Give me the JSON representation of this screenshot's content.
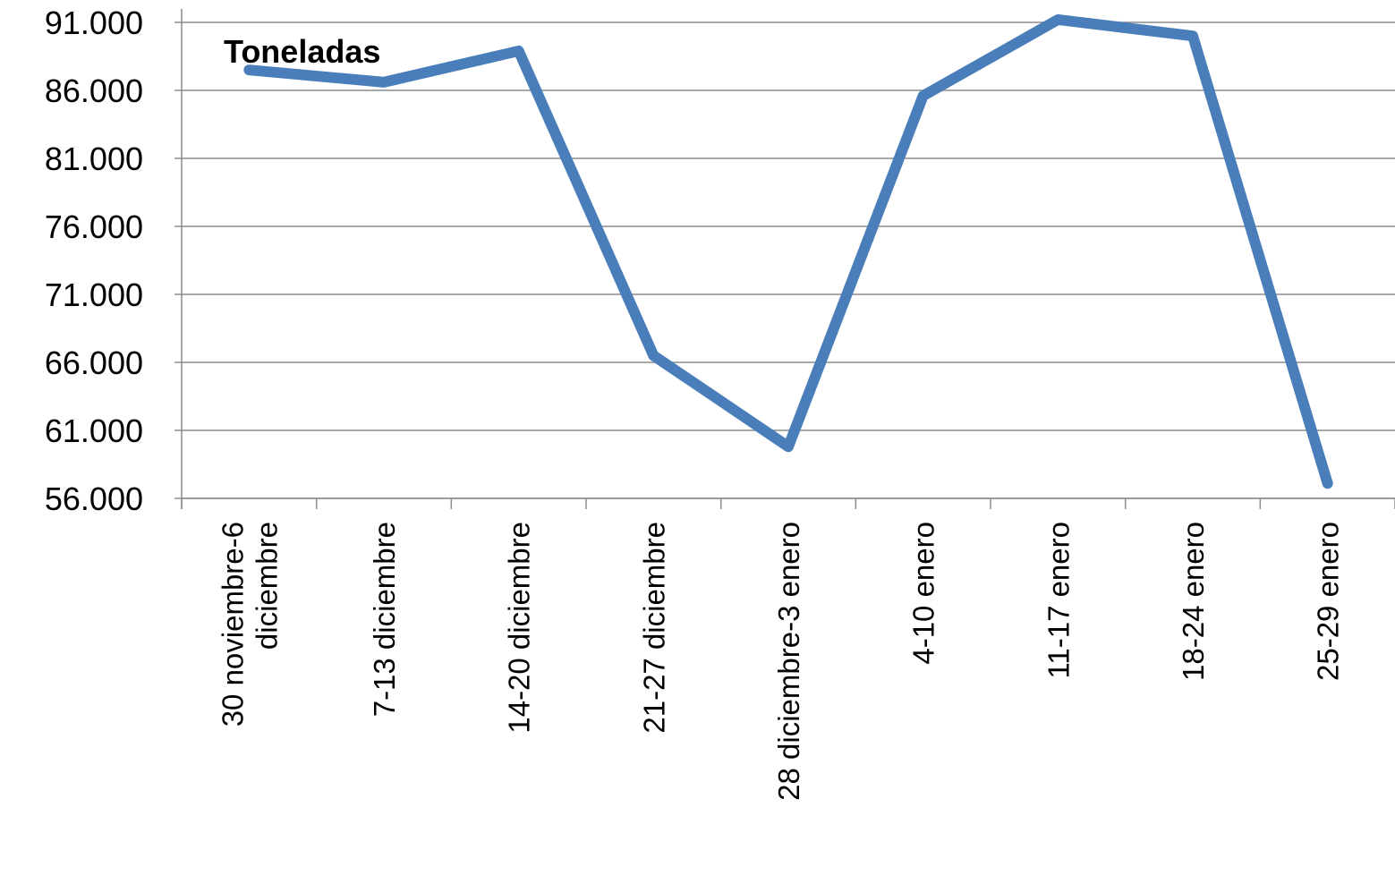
{
  "chart_data": {
    "type": "line",
    "categories": [
      [
        "30 noviembre-6",
        "diciembre"
      ],
      [
        "7-13 diciembre"
      ],
      [
        "14-20 diciembre"
      ],
      [
        "21-27 diciembre"
      ],
      [
        "28 diciembre-3 enero"
      ],
      [
        "4-10 enero"
      ],
      [
        "11-17 enero"
      ],
      [
        "18-24 enero"
      ],
      [
        "25-29 enero"
      ]
    ],
    "series": [
      {
        "name": "Toneladas",
        "values": [
          87500,
          86600,
          88900,
          66500,
          59800,
          85600,
          91200,
          90000,
          57100
        ],
        "color": "#4a7ebb"
      }
    ],
    "yticks": [
      "56.000",
      "61.000",
      "66.000",
      "71.000",
      "76.000",
      "81.000",
      "86.000",
      "91.000"
    ],
    "ylim": [
      56000,
      91000
    ],
    "grid": true,
    "title": "",
    "xlabel": "",
    "ylabel": ""
  }
}
